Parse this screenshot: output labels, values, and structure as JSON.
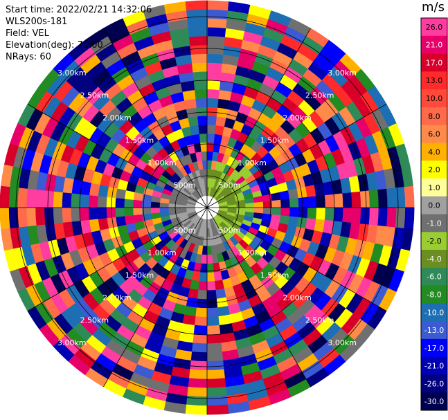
{
  "info": {
    "start_time": "Start time: 2022/02/21 14:32:06",
    "instrument": "WLS200s-181",
    "field": "Field: VEL",
    "elevation": "Elevation(deg): 75.00",
    "nrays": "NRays: 60"
  },
  "colorbar": {
    "unit": "m/s",
    "ticks": [
      "26.0",
      "21.0",
      "17.0",
      "13.0",
      "10.0",
      "8.0",
      "6.0",
      "4.0",
      "2.0",
      "1.0",
      "0.0",
      "-1.0",
      "-2.0",
      "-4.0",
      "-6.0",
      "-8.0",
      "-10.0",
      "-13.0",
      "-17.0",
      "-21.0",
      "-26.0",
      "-30.0"
    ],
    "colors": [
      "#ff3ca0",
      "#e8006a",
      "#d8002a",
      "#ff2a2a",
      "#ff4a3a",
      "#ff6a4a",
      "#ff8a4a",
      "#ffb000",
      "#ffff00",
      "#ffff9a",
      "#a0a0a0",
      "#707070",
      "#9acd32",
      "#6b8e23",
      "#2e8b57",
      "#228b22",
      "#1e6eb4",
      "#3c5ad2",
      "#0000ff",
      "#0000b4",
      "#000080",
      "#000050"
    ]
  },
  "chart_data": {
    "type": "heatmap",
    "projection": "polar (PPI)",
    "field": "VEL",
    "units": "m/s",
    "n_rays": 60,
    "range_ring_labels": [
      "500m",
      "1.00km",
      "1.50km",
      "2.00km",
      "2.50km",
      "3.00km"
    ],
    "color_levels": [
      -30.0,
      -26.0,
      -21.0,
      -17.0,
      -13.0,
      -10.0,
      -8.0,
      -6.0,
      -4.0,
      -2.0,
      -1.0,
      0.0,
      1.0,
      2.0,
      4.0,
      6.0,
      8.0,
      10.0,
      13.0,
      17.0,
      21.0,
      26.0
    ]
  }
}
